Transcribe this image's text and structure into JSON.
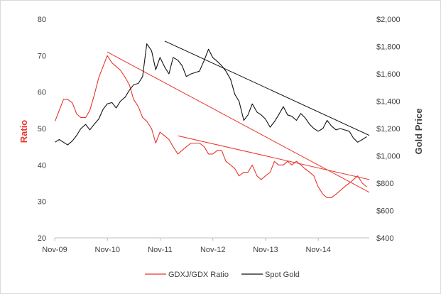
{
  "chart_data": {
    "type": "line",
    "title": "",
    "x_tick_labels": [
      "Nov-09",
      "Nov-10",
      "Nov-11",
      "Nov-12",
      "Nov-13",
      "Nov-14"
    ],
    "x_range": [
      2009.833,
      2015.8
    ],
    "left_axis": {
      "label": "Ratio",
      "range": [
        20,
        80
      ],
      "ticks": [
        20,
        30,
        40,
        50,
        60,
        70,
        80
      ],
      "tick_labels": [
        "20",
        "30",
        "40",
        "50",
        "60",
        "70",
        "80"
      ]
    },
    "right_axis": {
      "label": "Gold Price",
      "range": [
        400,
        2000
      ],
      "ticks": [
        400,
        600,
        800,
        1000,
        1200,
        1400,
        1600,
        1800,
        2000
      ],
      "tick_labels": [
        "$400",
        "$600",
        "$800",
        "$1,000",
        "$1,200",
        "$1,400",
        "$1,600",
        "$1,800",
        "$2,000"
      ]
    },
    "series": [
      {
        "name": "GDXJ/GDX Ratio",
        "axis": "left",
        "color": "#e8352b",
        "x": [
          2009.84,
          2009.92,
          2010.0,
          2010.08,
          2010.17,
          2010.25,
          2010.33,
          2010.42,
          2010.5,
          2010.58,
          2010.67,
          2010.75,
          2010.83,
          2010.92,
          2011.0,
          2011.08,
          2011.17,
          2011.25,
          2011.33,
          2011.42,
          2011.5,
          2011.58,
          2011.67,
          2011.75,
          2011.83,
          2011.92,
          2012.0,
          2012.08,
          2012.17,
          2012.25,
          2012.33,
          2012.42,
          2012.5,
          2012.58,
          2012.67,
          2012.75,
          2012.83,
          2012.92,
          2013.0,
          2013.08,
          2013.17,
          2013.25,
          2013.33,
          2013.42,
          2013.5,
          2013.58,
          2013.67,
          2013.75,
          2013.83,
          2013.92,
          2014.0,
          2014.08,
          2014.17,
          2014.25,
          2014.33,
          2014.42,
          2014.5,
          2014.58,
          2014.67,
          2014.75,
          2014.83,
          2014.92,
          2015.0,
          2015.08,
          2015.17,
          2015.25,
          2015.33,
          2015.42,
          2015.5,
          2015.58,
          2015.67,
          2015.75
        ],
        "values": [
          52,
          55,
          58,
          58,
          57,
          54,
          53,
          53,
          55,
          59,
          64,
          67,
          70,
          68,
          67,
          66,
          64,
          62,
          58,
          56,
          53,
          52,
          50,
          46,
          49,
          48,
          47,
          45,
          43,
          44,
          45,
          46,
          46,
          46,
          45,
          43,
          43,
          44,
          44,
          41,
          40,
          39,
          37,
          38,
          38,
          40,
          37,
          36,
          37,
          38,
          41,
          40,
          40,
          41,
          40,
          41,
          40,
          39,
          38,
          37,
          34,
          32,
          31,
          31,
          32,
          33,
          34,
          35,
          36,
          37,
          35,
          34
        ]
      },
      {
        "name": "Spot Gold",
        "axis": "right",
        "color": "#111111",
        "x": [
          2009.84,
          2009.92,
          2010.0,
          2010.08,
          2010.17,
          2010.25,
          2010.33,
          2010.42,
          2010.5,
          2010.58,
          2010.67,
          2010.75,
          2010.83,
          2010.92,
          2011.0,
          2011.08,
          2011.17,
          2011.25,
          2011.33,
          2011.42,
          2011.5,
          2011.58,
          2011.67,
          2011.75,
          2011.83,
          2011.92,
          2012.0,
          2012.08,
          2012.17,
          2012.25,
          2012.33,
          2012.42,
          2012.5,
          2012.58,
          2012.67,
          2012.75,
          2012.83,
          2012.92,
          2013.0,
          2013.08,
          2013.17,
          2013.25,
          2013.33,
          2013.42,
          2013.5,
          2013.58,
          2013.67,
          2013.75,
          2013.83,
          2013.92,
          2014.0,
          2014.08,
          2014.17,
          2014.25,
          2014.33,
          2014.42,
          2014.5,
          2014.58,
          2014.67,
          2014.75,
          2014.83,
          2014.92,
          2015.0,
          2015.08,
          2015.17,
          2015.25,
          2015.33,
          2015.42,
          2015.5,
          2015.58,
          2015.67,
          2015.75
        ],
        "values": [
          1100,
          1120,
          1100,
          1080,
          1110,
          1150,
          1200,
          1230,
          1190,
          1230,
          1270,
          1340,
          1380,
          1390,
          1350,
          1400,
          1430,
          1480,
          1520,
          1530,
          1580,
          1820,
          1770,
          1630,
          1720,
          1650,
          1600,
          1720,
          1700,
          1660,
          1580,
          1600,
          1610,
          1620,
          1700,
          1780,
          1720,
          1690,
          1660,
          1620,
          1560,
          1450,
          1400,
          1260,
          1300,
          1380,
          1320,
          1300,
          1270,
          1210,
          1250,
          1300,
          1360,
          1300,
          1290,
          1260,
          1310,
          1280,
          1230,
          1200,
          1180,
          1200,
          1260,
          1220,
          1190,
          1200,
          1190,
          1180,
          1130,
          1100,
          1120,
          1140
        ]
      }
    ],
    "trendlines": [
      {
        "axis": "left",
        "color": "#e8352b",
        "x1": 2010.83,
        "y1": 71,
        "x2": 2015.8,
        "y2": 32.5
      },
      {
        "axis": "left",
        "color": "#e8352b",
        "x1": 2012.17,
        "y1": 48,
        "x2": 2015.8,
        "y2": 36
      },
      {
        "axis": "right",
        "color": "#111111",
        "x1": 2011.92,
        "y1": 1840,
        "x2": 2015.8,
        "y2": 1150
      }
    ],
    "legend": {
      "position": "bottom",
      "entries": [
        {
          "label": "GDXJ/GDX Ratio",
          "color": "#e8352b"
        },
        {
          "label": "Spot Gold",
          "color": "#111111"
        }
      ]
    }
  }
}
